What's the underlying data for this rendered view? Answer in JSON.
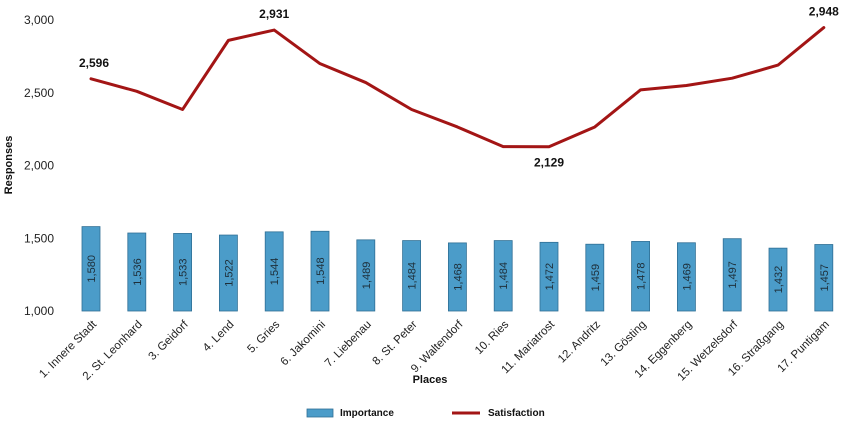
{
  "chart_data": {
    "type": "bar+line",
    "title": "",
    "xlabel": "Places",
    "ylabel": "Responses",
    "ylim": [
      1000,
      3000
    ],
    "yticks": [
      1000,
      1500,
      2000,
      2500,
      3000
    ],
    "ytick_labels": [
      "1,000",
      "1,500",
      "2,000",
      "2,500",
      "3,000"
    ],
    "categories": [
      "1. Innere Stadt",
      "2. St. Leonhard",
      "3. Geidorf",
      "4. Lend",
      "5. Gries",
      "6. Jakomini",
      "7. Liebenau",
      "8. St. Peter",
      "9. Waltendorf",
      "10. Ries",
      "11. Mariatrost",
      "12. Andritz",
      "13. Gösting",
      "14. Eggenberg",
      "15. Wetzelsdorf",
      "16. Straßgang",
      "17. Puntigam"
    ],
    "series": [
      {
        "name": "Importance",
        "kind": "bar",
        "color": "#4b9cc9",
        "values": [
          1580,
          1536,
          1533,
          1522,
          1544,
          1548,
          1489,
          1484,
          1468,
          1484,
          1472,
          1459,
          1478,
          1469,
          1497,
          1432,
          1457
        ],
        "labels": [
          "1,580",
          "1,536",
          "1,533",
          "1,522",
          "1,544",
          "1,548",
          "1,489",
          "1,484",
          "1,468",
          "1,484",
          "1,472",
          "1,459",
          "1,478",
          "1,469",
          "1,497",
          "1,432",
          "1,457"
        ]
      },
      {
        "name": "Satisfaction",
        "kind": "line",
        "color": "#a31515",
        "values": [
          2596,
          2510,
          2385,
          2860,
          2931,
          2700,
          2570,
          2385,
          2265,
          2130,
          2129,
          2265,
          2520,
          2550,
          2600,
          2690,
          2948
        ],
        "labels": [
          {
            "index": 0,
            "text": "2,596"
          },
          {
            "index": 4,
            "text": "2,931"
          },
          {
            "index": 10,
            "text": "2,129"
          },
          {
            "index": 16,
            "text": "2,948"
          }
        ]
      }
    ],
    "grid": false,
    "legend_position": "bottom"
  }
}
